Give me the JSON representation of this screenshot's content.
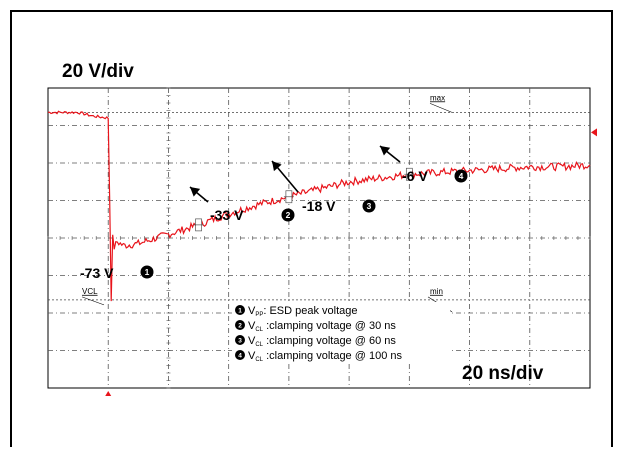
{
  "chart_data": {
    "type": "line",
    "title": "",
    "xlabel": "",
    "ylabel": "",
    "volts_per_div": "20 V/div",
    "time_per_div": "20 ns/div",
    "ylim": [
      -120,
      40
    ],
    "xlim": [
      -20,
      160
    ],
    "series": [
      {
        "name": "",
        "color": "#e8141b",
        "x": [
          -20,
          -10,
          -5,
          0,
          0.5,
          1,
          1.5,
          2,
          3,
          5,
          10,
          20,
          30,
          40,
          50,
          60,
          70,
          80,
          90,
          100,
          110,
          120,
          130,
          140,
          150,
          160
        ],
        "y": [
          27,
          27,
          25,
          24,
          -20,
          -73,
          -40,
          -45,
          -42,
          -44,
          -43,
          -38,
          -33,
          -27,
          -22,
          -18,
          -14,
          -10,
          -8,
          -6,
          -5,
          -4,
          -3,
          -2,
          -2,
          -1
        ]
      }
    ],
    "markers": [
      {
        "x": 0,
        "y": -73,
        "label": "-73 V",
        "num": "1"
      },
      {
        "x": 30,
        "y": -33,
        "label": "-33 V",
        "num": "2"
      },
      {
        "x": 60,
        "y": -18,
        "label": "-18 V",
        "num": "3"
      },
      {
        "x": 100,
        "y": -6,
        "label": "-6 V",
        "num": "4"
      }
    ],
    "cursor_labels": {
      "vcl": "VCL",
      "max": "max",
      "min": "min"
    },
    "legend": [
      {
        "num": "1",
        "symbol": "V",
        "sub": "PP",
        "text": ": ESD peak voltage"
      },
      {
        "num": "2",
        "symbol": "V",
        "sub": "CL",
        "text": " :clamping voltage @ 30 ns"
      },
      {
        "num": "3",
        "symbol": "V",
        "sub": "CL",
        "text": " :clamping voltage @ 60 ns"
      },
      {
        "num": "4",
        "symbol": "V",
        "sub": "CL",
        "text": " :clamping voltage @ 100 ns"
      }
    ],
    "grid": true
  }
}
